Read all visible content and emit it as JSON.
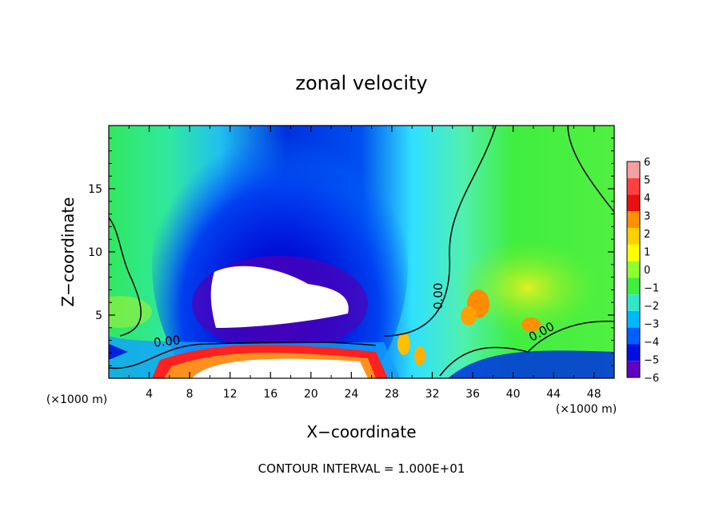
{
  "chart_data": {
    "type": "heatmap",
    "title": "zonal velocity",
    "xlabel": "X−coordinate",
    "ylabel": "Z−coordinate",
    "x_unit_left": "(×1000 m)",
    "x_unit_right": "(×1000 m)",
    "xlim": [
      0,
      50
    ],
    "ylim": [
      0,
      20
    ],
    "x_ticks": [
      4,
      8,
      12,
      16,
      20,
      24,
      28,
      32,
      36,
      40,
      44,
      48
    ],
    "y_ticks": [
      5,
      10,
      15
    ],
    "colorbar": {
      "levels": [
        6,
        5,
        4,
        3,
        2,
        1,
        0,
        -1,
        -2,
        -3,
        -4,
        -5,
        -6
      ],
      "labels": [
        "6",
        "5",
        "4",
        "3",
        "2",
        "1",
        "0",
        "−1",
        "−2",
        "−3",
        "−4",
        "−5",
        "−6"
      ],
      "colors": [
        "#f4a0a0",
        "#ff4040",
        "#e81010",
        "#ff9000",
        "#ffd000",
        "#ffff00",
        "#90ff30",
        "#40ee40",
        "#30e8c8",
        "#00b8ff",
        "#0060ff",
        "#0010e0",
        "#6000c0"
      ]
    },
    "contour_labels": [
      {
        "text": "0.00",
        "x": 5.8,
        "z": 2.6
      },
      {
        "text": "0.00",
        "x": 33.0,
        "z": 6.5
      },
      {
        "text": "0.00",
        "x": 43.0,
        "z": 3.4
      }
    ],
    "footer": "CONTOUR INTERVAL =  1.000E+01",
    "grid": false
  }
}
